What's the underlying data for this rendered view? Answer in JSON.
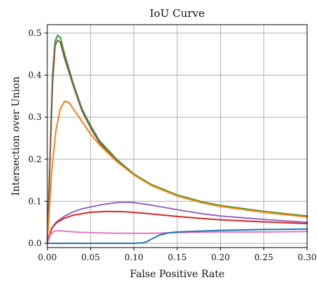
{
  "chart_data": {
    "type": "line",
    "title": "IoU Curve",
    "xlabel": "False Positive Rate",
    "ylabel": "Intersection over Union",
    "xlim": [
      0.0,
      0.3
    ],
    "ylim": [
      -0.01,
      0.52
    ],
    "xticks": [
      "0.00",
      "0.05",
      "0.10",
      "0.15",
      "0.20",
      "0.25",
      "0.30"
    ],
    "yticks": [
      "0.0",
      "0.1",
      "0.2",
      "0.3",
      "0.4",
      "0.5"
    ],
    "grid": true,
    "legend": "none",
    "series": [
      {
        "color": "#2ca02c",
        "x": [
          0.0,
          0.003,
          0.006,
          0.009,
          0.012,
          0.015,
          0.02,
          0.03,
          0.04,
          0.05,
          0.06,
          0.08,
          0.1,
          0.12,
          0.15,
          0.18,
          0.2,
          0.25,
          0.3
        ],
        "y": [
          0.0,
          0.2,
          0.4,
          0.48,
          0.495,
          0.49,
          0.45,
          0.38,
          0.32,
          0.28,
          0.245,
          0.2,
          0.165,
          0.14,
          0.115,
          0.098,
          0.09,
          0.076,
          0.065
        ]
      },
      {
        "color": "#8c564b",
        "x": [
          0.0,
          0.003,
          0.006,
          0.009,
          0.012,
          0.015,
          0.02,
          0.03,
          0.04,
          0.05,
          0.06,
          0.08,
          0.1,
          0.12,
          0.15,
          0.18,
          0.2,
          0.25,
          0.3
        ],
        "y": [
          0.0,
          0.19,
          0.38,
          0.47,
          0.483,
          0.478,
          0.44,
          0.375,
          0.315,
          0.275,
          0.24,
          0.197,
          0.163,
          0.138,
          0.113,
          0.096,
          0.088,
          0.074,
          0.063
        ]
      },
      {
        "color": "#ff7f0e",
        "x": [
          0.0,
          0.005,
          0.01,
          0.015,
          0.02,
          0.025,
          0.03,
          0.04,
          0.05,
          0.06,
          0.08,
          0.1,
          0.12,
          0.15,
          0.18,
          0.2,
          0.25,
          0.3
        ],
        "y": [
          0.0,
          0.17,
          0.27,
          0.32,
          0.338,
          0.335,
          0.32,
          0.29,
          0.26,
          0.235,
          0.195,
          0.163,
          0.138,
          0.113,
          0.096,
          0.088,
          0.074,
          0.063
        ]
      },
      {
        "color": "#9467bd",
        "x": [
          0.0,
          0.005,
          0.01,
          0.02,
          0.03,
          0.04,
          0.06,
          0.08,
          0.09,
          0.1,
          0.12,
          0.15,
          0.18,
          0.2,
          0.25,
          0.3
        ],
        "y": [
          0.0,
          0.035,
          0.05,
          0.065,
          0.075,
          0.082,
          0.091,
          0.097,
          0.098,
          0.097,
          0.091,
          0.08,
          0.07,
          0.065,
          0.057,
          0.05
        ]
      },
      {
        "color": "#d62728",
        "x": [
          0.0,
          0.005,
          0.01,
          0.02,
          0.03,
          0.05,
          0.07,
          0.09,
          0.11,
          0.13,
          0.15,
          0.18,
          0.2,
          0.25,
          0.3
        ],
        "y": [
          0.0,
          0.035,
          0.048,
          0.06,
          0.067,
          0.074,
          0.076,
          0.075,
          0.072,
          0.068,
          0.064,
          0.059,
          0.056,
          0.051,
          0.047
        ]
      },
      {
        "color": "#e377c2",
        "x": [
          0.0,
          0.004,
          0.008,
          0.012,
          0.02,
          0.04,
          0.06,
          0.08,
          0.1,
          0.12,
          0.14,
          0.16,
          0.2,
          0.25,
          0.3
        ],
        "y": [
          0.0,
          0.022,
          0.029,
          0.03,
          0.029,
          0.026,
          0.025,
          0.024,
          0.024,
          0.024,
          0.025,
          0.026,
          0.027,
          0.027,
          0.028
        ]
      },
      {
        "color": "#1f77b4",
        "x": [
          0.0,
          0.02,
          0.05,
          0.08,
          0.1,
          0.11,
          0.115,
          0.12,
          0.13,
          0.14,
          0.15,
          0.2,
          0.25,
          0.3
        ],
        "y": [
          0.0,
          0.0,
          0.0,
          0.0,
          0.0,
          0.001,
          0.004,
          0.01,
          0.02,
          0.025,
          0.027,
          0.031,
          0.033,
          0.034
        ]
      }
    ]
  }
}
